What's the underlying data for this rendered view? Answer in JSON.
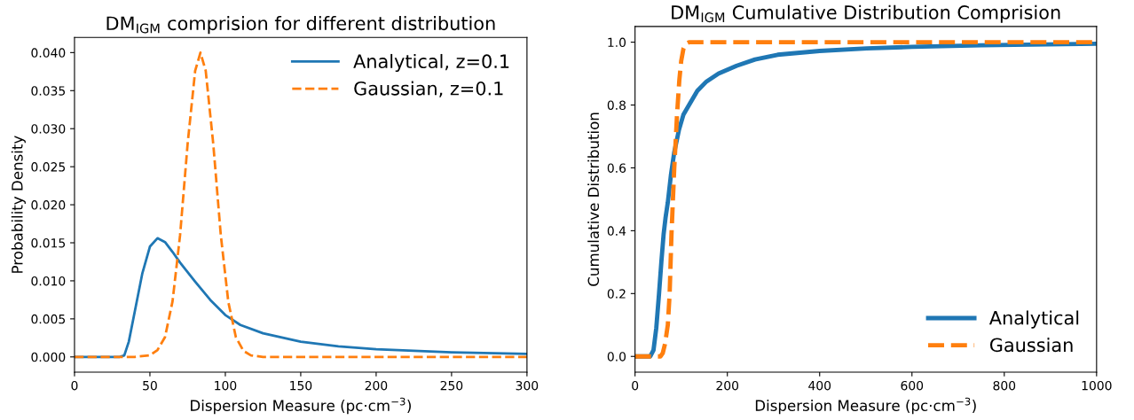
{
  "chart_data": [
    {
      "type": "line",
      "title": "DM$_{IGM}$ comprision for different distribution",
      "xlabel": "Dispersion Measure (pc·cm$^{−3}$)",
      "ylabel": "Probability Density",
      "xlim": [
        0,
        300
      ],
      "ylim": [
        -0.002,
        0.042
      ],
      "xticks": [
        0,
        50,
        100,
        150,
        200,
        250,
        300
      ],
      "yticks": [
        {
          "value": 0,
          "label": "0.000"
        },
        {
          "value": 0.005,
          "label": "0.005"
        },
        {
          "value": 0.01,
          "label": "0.010"
        },
        {
          "value": 0.015,
          "label": "0.015"
        },
        {
          "value": 0.02,
          "label": "0.020"
        },
        {
          "value": 0.025,
          "label": "0.025"
        },
        {
          "value": 0.03,
          "label": "0.030"
        },
        {
          "value": 0.035,
          "label": "0.035"
        },
        {
          "value": 0.04,
          "label": "0.040"
        }
      ],
      "legend": "top right",
      "grid": false,
      "series": [
        {
          "name": "Analytical, z=0.1",
          "color": "#1f77b4",
          "line_style": "solid",
          "x": [
            0,
            30,
            33,
            36,
            40,
            45,
            50,
            55,
            60,
            65,
            70,
            80,
            90,
            100,
            110,
            125,
            150,
            175,
            200,
            250,
            300
          ],
          "values": [
            0,
            0,
            0.0002,
            0.002,
            0.006,
            0.011,
            0.0145,
            0.0156,
            0.0151,
            0.0138,
            0.0124,
            0.0099,
            0.0075,
            0.0055,
            0.0042,
            0.0031,
            0.002,
            0.0014,
            0.001,
            0.0006,
            0.0004
          ]
        },
        {
          "name": "Gaussian, z=0.1",
          "color": "#ff7f0e",
          "line_style": "dashed",
          "x": [
            0,
            40,
            50,
            55,
            60,
            65,
            70,
            75,
            80,
            83.5,
            87,
            92,
            97,
            102,
            107,
            112,
            117,
            125,
            150,
            300
          ],
          "values": [
            0,
            0,
            0.0002,
            0.0009,
            0.0026,
            0.0073,
            0.016,
            0.028,
            0.0376,
            0.04,
            0.0376,
            0.028,
            0.016,
            0.0072,
            0.0026,
            0.0008,
            0.0002,
            0,
            0,
            0
          ]
        }
      ]
    },
    {
      "type": "line",
      "title": "DM$_{IGM}$ Cumulative Distribution Comprision",
      "xlabel": "Dispersion Measure (pc·cm$^{−3}$)",
      "ylabel": "Cumulative Distribution",
      "xlim": [
        0,
        1000
      ],
      "ylim": [
        -0.05,
        1.05
      ],
      "xticks": [
        0,
        200,
        400,
        600,
        800,
        1000
      ],
      "yticks": [
        {
          "value": 0,
          "label": "0.0"
        },
        {
          "value": 0.2,
          "label": "0.2"
        },
        {
          "value": 0.4,
          "label": "0.4"
        },
        {
          "value": 0.6,
          "label": "0.6"
        },
        {
          "value": 0.8,
          "label": "0.8"
        },
        {
          "value": 1,
          "label": "1.0"
        }
      ],
      "legend": "bottom right",
      "grid": false,
      "series": [
        {
          "name": "Analytical",
          "color": "#1f77b4",
          "line_style": "solid",
          "x": [
            0,
            33,
            40,
            46,
            52,
            57,
            62,
            66,
            71,
            78,
            85,
            95,
            105,
            117,
            135,
            155,
            181,
            220,
            260,
            309,
            400,
            502,
            600,
            750,
            1000
          ],
          "values": [
            0,
            0,
            0.02,
            0.09,
            0.2,
            0.3,
            0.39,
            0.44,
            0.49,
            0.58,
            0.65,
            0.72,
            0.77,
            0.8,
            0.845,
            0.875,
            0.9,
            0.925,
            0.945,
            0.96,
            0.972,
            0.98,
            0.985,
            0.99,
            0.995
          ]
        },
        {
          "name": "Gaussian",
          "color": "#ff7f0e",
          "line_style": "dashed",
          "x": [
            0,
            55,
            60,
            65,
            71,
            75,
            79,
            85,
            91,
            96,
            100,
            105,
            110,
            117,
            1000
          ],
          "values": [
            0,
            0,
            0.01,
            0.04,
            0.1,
            0.2,
            0.39,
            0.6,
            0.77,
            0.88,
            0.94,
            0.98,
            0.995,
            1,
            1
          ]
        }
      ]
    }
  ]
}
